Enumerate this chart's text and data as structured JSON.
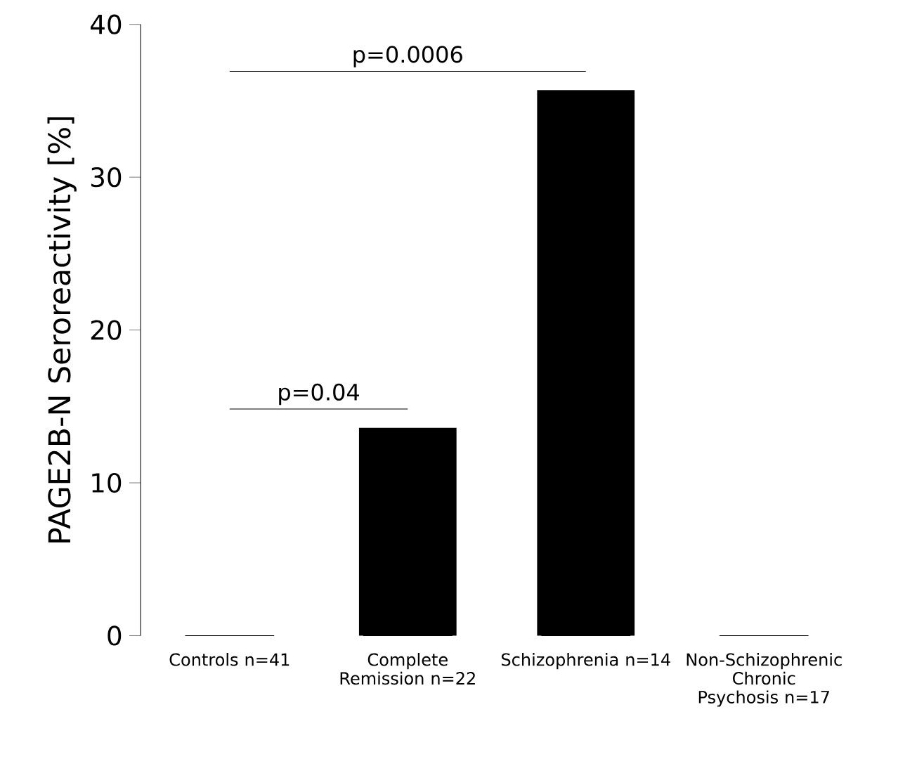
{
  "chart_data": {
    "type": "bar",
    "ylabel": "PAGE2B-N Seroreactivity  [%]",
    "categories": [
      "Controls n=41",
      "Complete Remission n=22",
      "Schizophrenia n=14",
      "Non-Schizophrenic Chronic Psychosis n=17"
    ],
    "values": [
      0,
      13.6,
      35.7,
      0
    ],
    "color": "#000000",
    "ylim": [
      0,
      40
    ],
    "yticks": [
      0,
      10,
      20,
      30,
      40
    ],
    "grid": false,
    "annotations": [
      "p=0.04",
      "p=0.0006"
    ]
  }
}
